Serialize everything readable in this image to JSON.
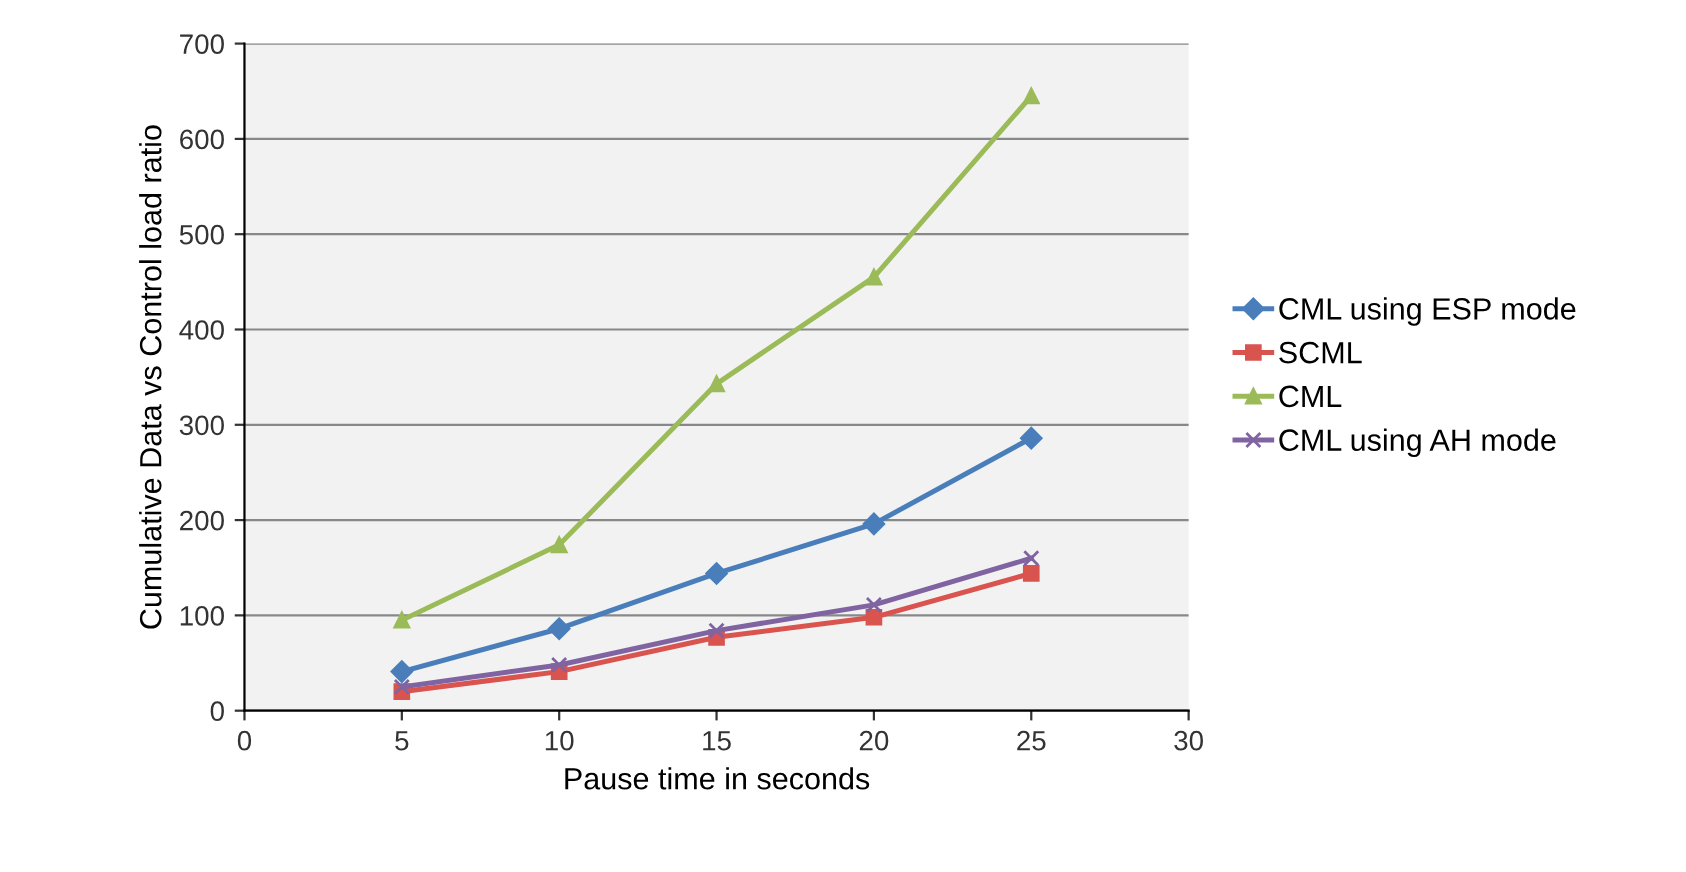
{
  "chart_data": {
    "type": "line",
    "xlabel": "Pause time in seconds",
    "ylabel": "Cumulative Data vs Control load ratio",
    "x": [
      5,
      10,
      15,
      20,
      25
    ],
    "series": [
      {
        "name": "CML using ESP mode",
        "color": "#4a7ebb",
        "marker": "diamond",
        "values": [
          41,
          86,
          144,
          196,
          286
        ]
      },
      {
        "name": "SCML",
        "color": "#d9534f",
        "marker": "square",
        "values": [
          20,
          41,
          77,
          98,
          144
        ]
      },
      {
        "name": "CML",
        "color": "#9bbb59",
        "marker": "triangle",
        "values": [
          95,
          174,
          343,
          455,
          645
        ]
      },
      {
        "name": "CML using AH mode",
        "color": "#8064a2",
        "marker": "cross",
        "values": [
          25,
          48,
          84,
          111,
          160
        ]
      }
    ],
    "xlim": [
      0,
      30
    ],
    "xticks": [
      0,
      5,
      10,
      15,
      20,
      25,
      30
    ],
    "ylim": [
      0,
      700
    ],
    "yticks": [
      0,
      100,
      200,
      300,
      400,
      500,
      600,
      700
    ],
    "grid": "y",
    "legend": "right",
    "line_style": "solid"
  }
}
